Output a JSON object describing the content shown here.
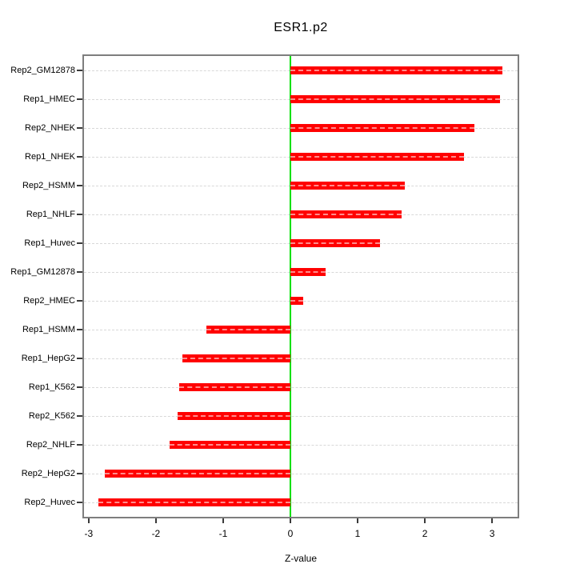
{
  "title": "ESR1.p2",
  "xaxis": {
    "label": "Z-value"
  },
  "colors": {
    "bar": "#ff0000",
    "zero_line": "#00e000",
    "grid": "#d8d8d8",
    "box": "#7e7e7e",
    "text": "#000000"
  },
  "chart_data": {
    "type": "bar",
    "orientation": "horizontal",
    "title": "ESR1.p2",
    "xlabel": "Z-value",
    "ylabel": "",
    "categories": [
      "Rep2_GM12878",
      "Rep1_HMEC",
      "Rep2_NHEK",
      "Rep1_NHEK",
      "Rep2_HSMM",
      "Rep1_NHLF",
      "Rep1_Huvec",
      "Rep1_GM12878",
      "Rep2_HMEC",
      "Rep1_HSMM",
      "Rep1_HepG2",
      "Rep1_K562",
      "Rep2_K562",
      "Rep2_NHLF",
      "Rep2_HepG2",
      "Rep2_Huvec"
    ],
    "values": [
      3.15,
      3.12,
      2.74,
      2.58,
      1.7,
      1.65,
      1.33,
      0.52,
      0.19,
      -1.25,
      -1.61,
      -1.65,
      -1.68,
      -1.8,
      -2.76,
      -2.85
    ],
    "xticks": [
      -3,
      -2,
      -1,
      0,
      1,
      2,
      3
    ],
    "xlim": [
      -3.07,
      3.38
    ],
    "grid": "horizontal-dashed-per-category",
    "zero_reference_line": 0,
    "legend": "none"
  }
}
